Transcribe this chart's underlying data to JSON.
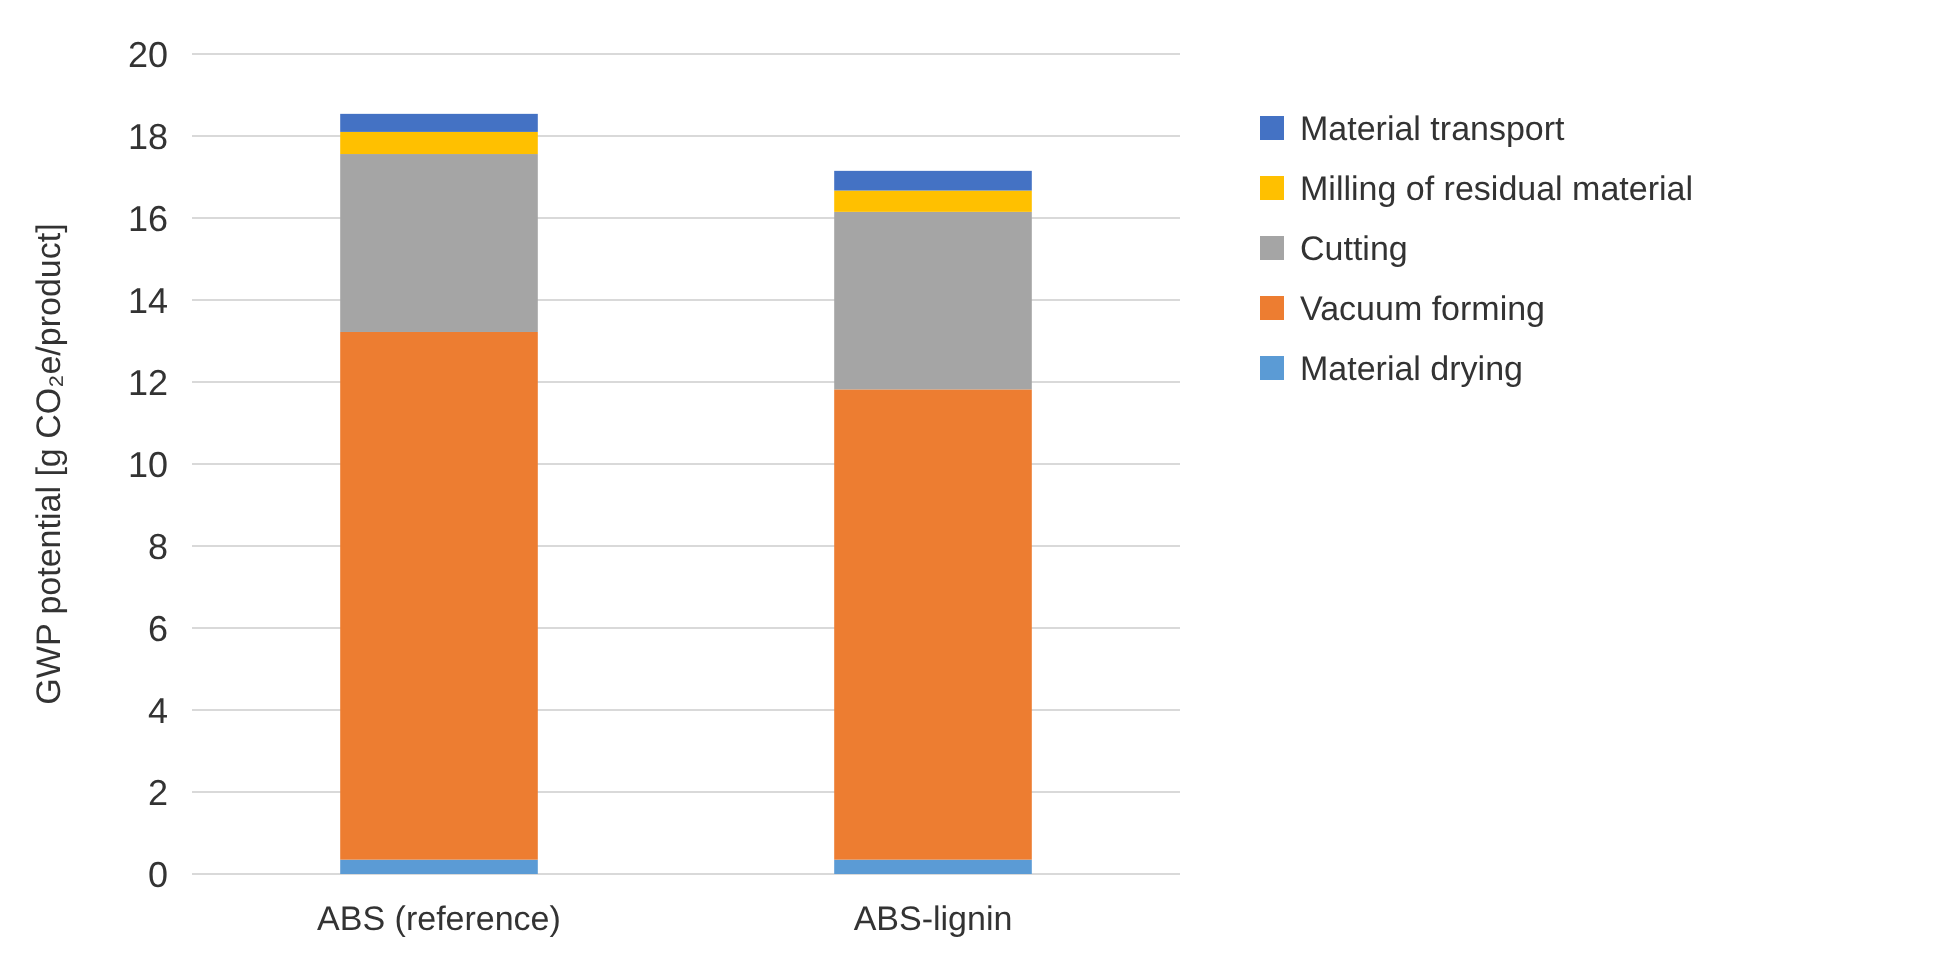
{
  "chart_data": {
    "type": "bar",
    "stacked": true,
    "ylabel": "GWP potential [g CO₂e/product]",
    "categories": [
      "ABS (reference)",
      "ABS-lignin"
    ],
    "series": [
      {
        "name": "Material drying",
        "color": "#5b9bd5",
        "values": [
          0.35,
          0.35
        ]
      },
      {
        "name": "Vacuum forming",
        "color": "#ed7d31",
        "values": [
          12.87,
          11.47
        ]
      },
      {
        "name": "Cutting",
        "color": "#a5a5a5",
        "values": [
          4.34,
          4.33
        ]
      },
      {
        "name": "Milling of residual material",
        "color": "#ffc000",
        "values": [
          0.54,
          0.52
        ]
      },
      {
        "name": "Material transport",
        "color": "#4472c4",
        "values": [
          0.44,
          0.48
        ]
      }
    ],
    "ylim": [
      0,
      20
    ],
    "yticks": [
      0,
      2,
      4,
      6,
      8,
      10,
      12,
      14,
      16,
      18,
      20
    ],
    "grid": "y",
    "legend": "right"
  }
}
